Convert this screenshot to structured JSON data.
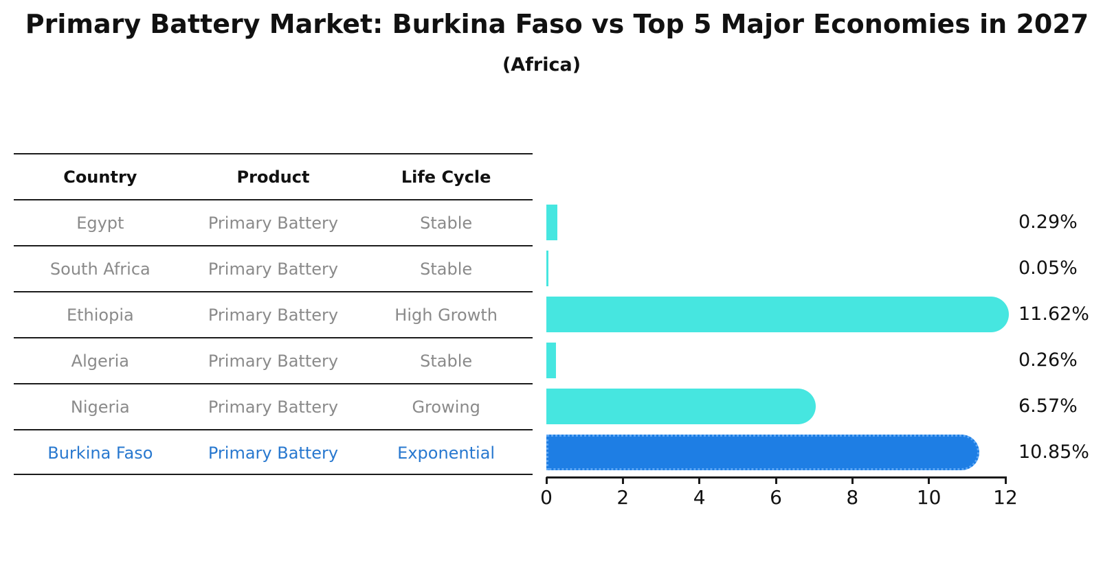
{
  "title": "Primary Battery Market: Burkina Faso vs Top 5 Major Economies in 2027",
  "subtitle": "(Africa)",
  "table": {
    "headers": [
      "Country",
      "Product",
      "Life Cycle"
    ],
    "rows": [
      {
        "country": "Egypt",
        "product": "Primary Battery",
        "life_cycle": "Stable",
        "highlight": false
      },
      {
        "country": "South Africa",
        "product": "Primary Battery",
        "life_cycle": "Stable",
        "highlight": false
      },
      {
        "country": "Ethiopia",
        "product": "Primary Battery",
        "life_cycle": "High Growth",
        "highlight": false
      },
      {
        "country": "Algeria",
        "product": "Primary Battery",
        "life_cycle": "Stable",
        "highlight": false
      },
      {
        "country": "Nigeria",
        "product": "Primary Battery",
        "life_cycle": "Growing",
        "highlight": false
      },
      {
        "country": "Burkina Faso",
        "product": "Primary Battery",
        "life_cycle": "Exponential",
        "highlight": true
      }
    ]
  },
  "chart_data": {
    "type": "bar",
    "orientation": "horizontal",
    "categories": [
      "Egypt",
      "South Africa",
      "Ethiopia",
      "Algeria",
      "Nigeria",
      "Burkina Faso"
    ],
    "values": [
      0.29,
      0.05,
      11.62,
      0.26,
      6.57,
      10.85
    ],
    "value_labels": [
      "0.29%",
      "0.05%",
      "11.62%",
      "0.26%",
      "6.57%",
      "10.85%"
    ],
    "xlim": [
      0,
      12
    ],
    "xticks": [
      0,
      2,
      4,
      6,
      8,
      10,
      12
    ],
    "grid": false,
    "legend": false,
    "bar_color": "#46E6E0",
    "highlight_bar_color": "#1E7EE4",
    "highlight_index": 5
  },
  "colors": {
    "text": "#111111",
    "muted_text": "#8a8a8a",
    "highlight_text": "#2878cf",
    "line": "#1a1a1a"
  }
}
